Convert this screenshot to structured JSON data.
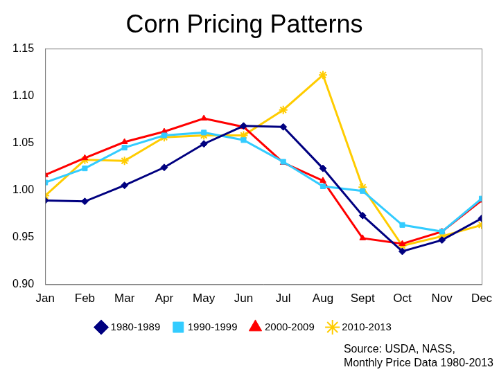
{
  "chart_data": {
    "type": "line",
    "title": "Corn Pricing Patterns",
    "categories": [
      "Jan",
      "Feb",
      "Mar",
      "Apr",
      "May",
      "Jun",
      "Jul",
      "Aug",
      "Sept",
      "Oct",
      "Nov",
      "Dec"
    ],
    "series": [
      {
        "name": "1980-1989",
        "color": "#000080",
        "marker": "diamond",
        "values": [
          0.989,
          0.988,
          1.005,
          1.024,
          1.049,
          1.068,
          1.067,
          1.023,
          0.973,
          0.935,
          0.947,
          0.97
        ]
      },
      {
        "name": "1990-1999",
        "color": "#33ccff",
        "marker": "square",
        "values": [
          1.008,
          1.023,
          1.045,
          1.058,
          1.061,
          1.053,
          1.03,
          1.004,
          0.999,
          0.963,
          0.956,
          0.991
        ]
      },
      {
        "name": "2000-2009",
        "color": "#ff0000",
        "marker": "triangle",
        "values": [
          1.016,
          1.034,
          1.051,
          1.062,
          1.076,
          1.067,
          1.029,
          1.01,
          0.949,
          0.943,
          0.956,
          0.989
        ]
      },
      {
        "name": "2010-2013",
        "color": "#ffcc00",
        "marker": "star",
        "values": [
          0.994,
          1.032,
          1.031,
          1.056,
          1.058,
          1.058,
          1.085,
          1.122,
          1.003,
          0.941,
          0.951,
          0.963
        ]
      }
    ],
    "ylim": [
      0.9,
      1.15
    ],
    "yticks": [
      {
        "value": 0.9,
        "label": "0.90"
      },
      0.95,
      {
        "value": 1,
        "label": "1.00"
      },
      1.05,
      {
        "value": 1.1,
        "label": "1.10"
      },
      1.15
    ],
    "grid": false,
    "legend": "bottom",
    "annotations": [
      "Source: USDA, NASS,",
      "Monthly Price Data 1980-2013"
    ]
  }
}
